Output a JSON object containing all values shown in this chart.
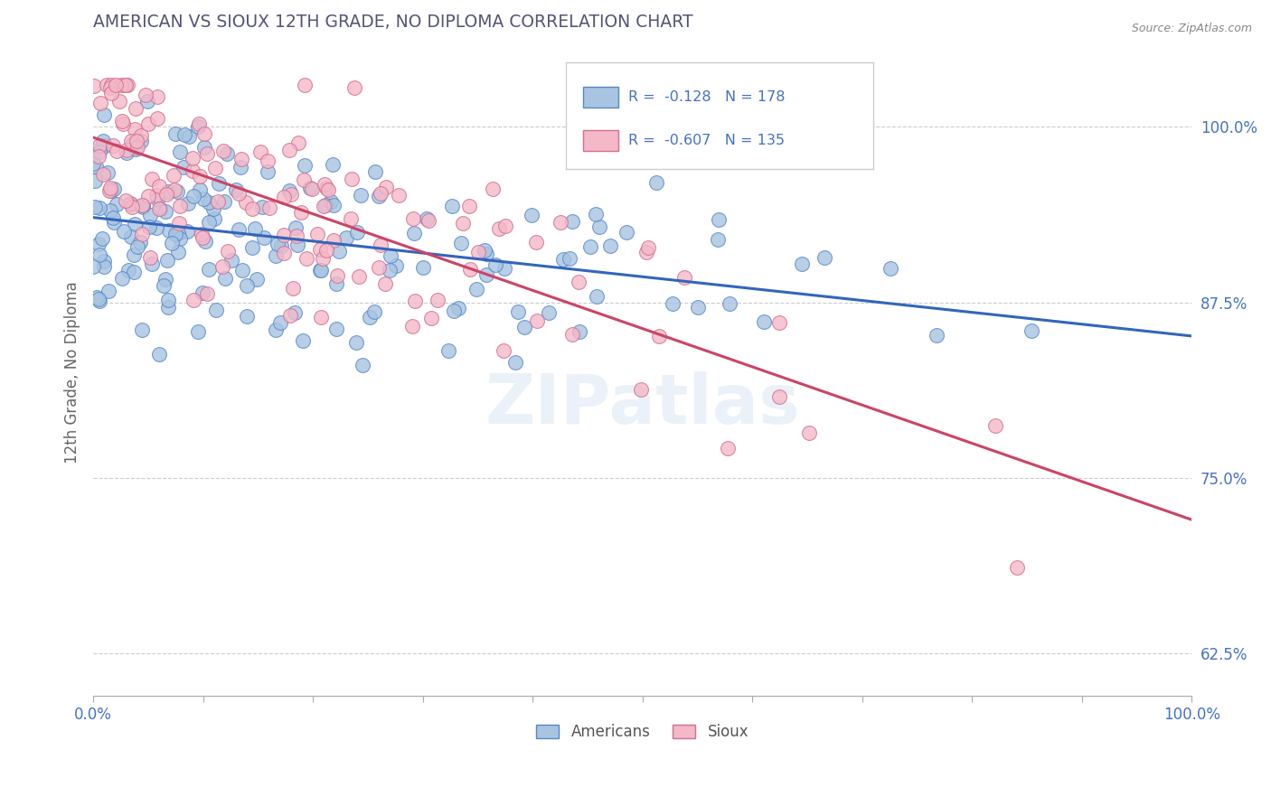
{
  "title": "AMERICAN VS SIOUX 12TH GRADE, NO DIPLOMA CORRELATION CHART",
  "source": "Source: ZipAtlas.com",
  "ylabel": "12th Grade, No Diploma",
  "watermark": "ZIPatlas",
  "americans": {
    "R": -0.128,
    "N": 178,
    "scatter_color": "#a8c4e0",
    "edge_color": "#5588cc",
    "line_color": "#3366bb"
  },
  "sioux": {
    "R": -0.607,
    "N": 135,
    "scatter_color": "#f4b8c8",
    "edge_color": "#d07090",
    "line_color": "#cc4466"
  },
  "xlim": [
    0.0,
    1.0
  ],
  "ylim": [
    0.595,
    1.055
  ],
  "y_ticks": [
    0.625,
    0.75,
    0.875,
    1.0
  ],
  "y_tick_labels": [
    "62.5%",
    "75.0%",
    "87.5%",
    "100.0%"
  ],
  "background_color": "#ffffff",
  "grid_color": "#cccccc",
  "title_color": "#555577",
  "tick_color": "#4472c4"
}
